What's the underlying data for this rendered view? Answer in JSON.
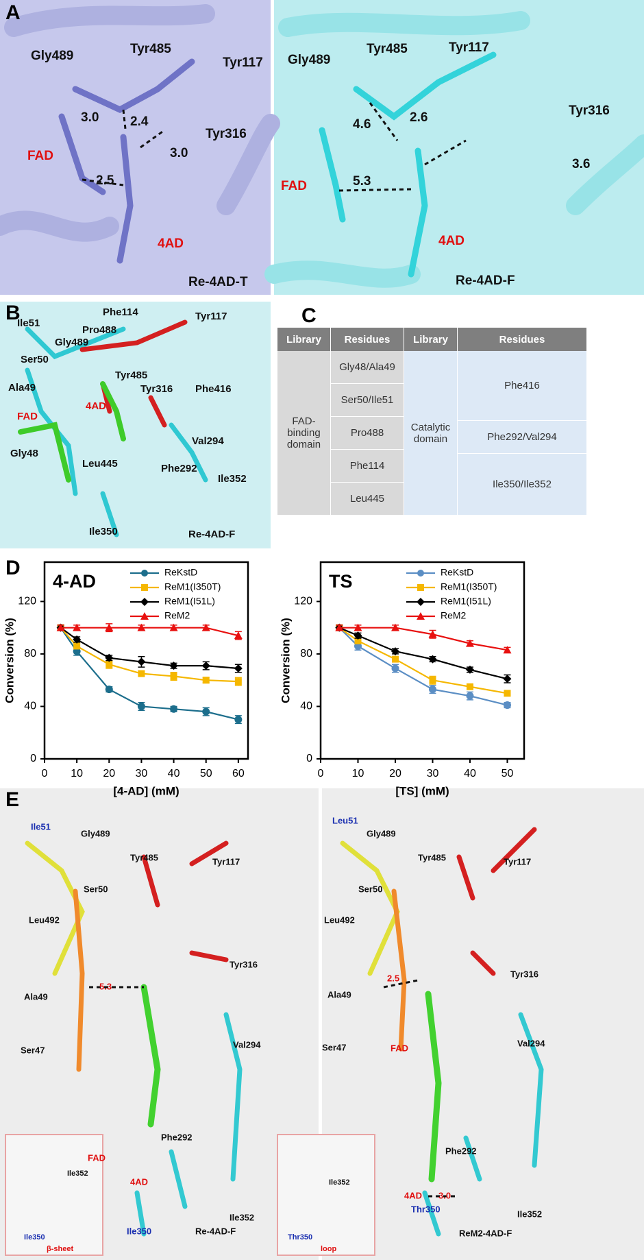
{
  "figure": {
    "panel_letters": [
      "A",
      "B",
      "C",
      "D",
      "E"
    ],
    "panel_a_left": [
      "Gly489",
      "Tyr485",
      "Tyr117",
      "3.0",
      "2.4",
      "Tyr316",
      "3.0",
      "FAD",
      "2.5",
      "4AD",
      "Re-4AD-T"
    ],
    "panel_a_right": [
      "Gly489",
      "Tyr485",
      "Tyr117",
      "Tyr316",
      "4.6",
      "2.6",
      "3.6",
      "FAD",
      "5.3",
      "4AD",
      "Re-4AD-F"
    ],
    "panel_b": [
      "Ile51",
      "Phe114",
      "Tyr117",
      "Pro488",
      "Gly489",
      "Ser50",
      "Tyr485",
      "Ala49",
      "Tyr316",
      "Phe416",
      "FAD",
      "4AD",
      "Val294",
      "Gly48",
      "Leu445",
      "Phe292",
      "Ile352",
      "Ile350",
      "Re-4AD-F"
    ],
    "panel_e_left": [
      "Ile51",
      "Gly489",
      "Tyr485",
      "Tyr117",
      "Ser50",
      "Leu492",
      "Tyr316",
      "5.3",
      "Ala49",
      "Val294",
      "Ser47",
      "FAD",
      "4AD",
      "Phe292",
      "Ile352",
      "Ile350",
      "Re-4AD-F",
      "Ile352",
      "Ile350",
      "β-sheet"
    ],
    "panel_e_right": [
      "Leu51",
      "Gly489",
      "Tyr485",
      "Tyr117",
      "Ser50",
      "Leu492",
      "Tyr316",
      "2.5",
      "Ala49",
      "Val294",
      "Ser47",
      "FAD",
      "Phe292",
      "4AD",
      "3.0",
      "Ile352",
      "Thr350",
      "ReM2-4AD-F",
      "Ile352",
      "Thr350",
      "loop"
    ]
  },
  "table": {
    "headers": [
      "Library",
      "Residues",
      "Library",
      "Residues"
    ],
    "groups": [
      {
        "library": "FAD-binding domain",
        "residues": [
          "Gly48/Ala49",
          "Ser50/Ile51",
          "Pro488",
          "Phe114",
          "Leu445"
        ]
      },
      {
        "library": "Catalytic domain",
        "residues": [
          "Phe416",
          "Phe292/Val294",
          "Ile350/Ile352"
        ]
      }
    ]
  },
  "chart_data": [
    {
      "type": "line",
      "title": "4-AD",
      "x_label": "[4-AD] (mM)",
      "y_label": "Conversion (%)",
      "x": [
        5,
        10,
        20,
        30,
        40,
        50,
        60
      ],
      "xlim": [
        0,
        63
      ],
      "xticks": [
        0,
        10,
        20,
        30,
        40,
        50,
        60
      ],
      "ylim": [
        0,
        150
      ],
      "yticks": [
        0,
        40,
        80,
        120
      ],
      "grid": false,
      "legend": "upper right",
      "series": [
        {
          "name": "ReKstD",
          "color": "#1c6e8c",
          "marker": "circle",
          "values": [
            100,
            82,
            53,
            40,
            38,
            36,
            30
          ],
          "errors": [
            2,
            3,
            2,
            3,
            2,
            3,
            3
          ]
        },
        {
          "name": "ReM1(I350T)",
          "color": "#f5b700",
          "marker": "square",
          "values": [
            100,
            86,
            72,
            65,
            63,
            60,
            59
          ],
          "errors": [
            2,
            2,
            3,
            2,
            3,
            2,
            3
          ]
        },
        {
          "name": "ReM1(I51L)",
          "color": "#000000",
          "marker": "diamond",
          "values": [
            100,
            91,
            77,
            74,
            71,
            71,
            69
          ],
          "errors": [
            2,
            2,
            2,
            4,
            2,
            3,
            3
          ]
        },
        {
          "name": "ReM2",
          "color": "#e8100f",
          "marker": "triangle",
          "values": [
            100,
            100,
            100,
            100,
            100,
            100,
            94
          ],
          "errors": [
            2,
            2,
            3,
            2,
            2,
            2,
            3
          ]
        }
      ]
    },
    {
      "type": "line",
      "title": "TS",
      "x_label": "[TS] (mM)",
      "y_label": "Conversion (%)",
      "x": [
        5,
        10,
        20,
        30,
        40,
        50
      ],
      "xlim": [
        0,
        54.5
      ],
      "xticks": [
        0,
        10,
        20,
        30,
        40,
        50
      ],
      "ylim": [
        0,
        150
      ],
      "yticks": [
        0,
        40,
        80,
        120
      ],
      "grid": false,
      "legend": "upper right",
      "series": [
        {
          "name": "ReKstD",
          "color": "#5b8ec4",
          "marker": "circle",
          "values": [
            100,
            86,
            69,
            53,
            48,
            41
          ],
          "errors": [
            2,
            3,
            3,
            3,
            3,
            2
          ]
        },
        {
          "name": "ReM1(I350T)",
          "color": "#f5b700",
          "marker": "square",
          "values": [
            100,
            90,
            76,
            60,
            55,
            50
          ],
          "errors": [
            2,
            2,
            2,
            3,
            2,
            2
          ]
        },
        {
          "name": "ReM1(I51L)",
          "color": "#000000",
          "marker": "diamond",
          "values": [
            100,
            94,
            82,
            76,
            68,
            61
          ],
          "errors": [
            2,
            2,
            2,
            2,
            2,
            3
          ]
        },
        {
          "name": "ReM2",
          "color": "#e8100f",
          "marker": "triangle",
          "values": [
            100,
            100,
            100,
            95,
            88,
            83
          ],
          "errors": [
            2,
            2,
            2,
            3,
            2,
            2
          ]
        }
      ]
    }
  ]
}
